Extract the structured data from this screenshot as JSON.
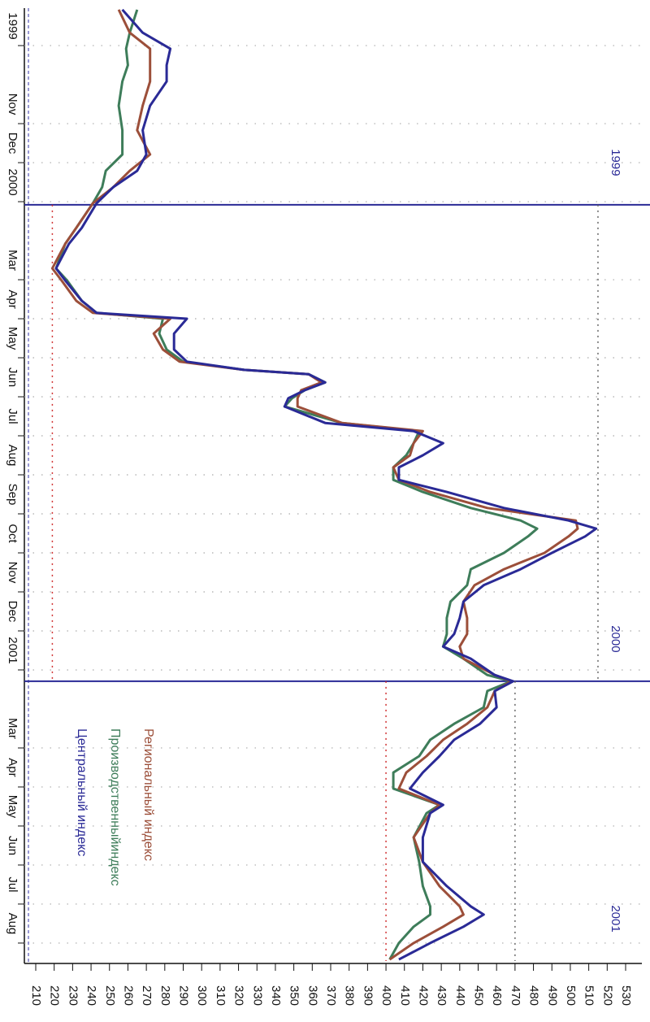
{
  "chart_data": {
    "type": "line",
    "x": [
      -0.42,
      0.17,
      0.58,
      1.0,
      1.42,
      2.04,
      2.67,
      3.29,
      3.71,
      4.13,
      4.54,
      5.17,
      5.58,
      6.21,
      6.52,
      7.04,
      7.35,
      7.5,
      7.88,
      8.29,
      8.6,
      8.81,
      8.92,
      9.13,
      9.33,
      9.54,
      9.75,
      10.17,
      10.38,
      10.69,
      11.0,
      11.31,
      11.63,
      11.94,
      12.35,
      12.67,
      12.88,
      13.08,
      13.5,
      13.92,
      14.33,
      14.75,
      15.17,
      15.58,
      15.9,
      16.21,
      16.63,
      16.79,
      17.04,
      17.46,
      17.88,
      18.29,
      18.71,
      19.13,
      19.54,
      19.96,
      20.17,
      20.79,
      21.42,
      22.04,
      22.56,
      22.77,
      23.08,
      23.5,
      23.92
    ],
    "series": [
      {
        "name": "Региональный индекс",
        "color": "#9c4f3a",
        "values": [
          255,
          261,
          272,
          272,
          272,
          268,
          265,
          272,
          261,
          252,
          241,
          232,
          226,
          219,
          224,
          232,
          241,
          283,
          274,
          279,
          288,
          323,
          358,
          365,
          354,
          352,
          352,
          376,
          420,
          415,
          413,
          404,
          407,
          424,
          455,
          503,
          504,
          499,
          486,
          464,
          448,
          442,
          444,
          444,
          440,
          442,
          459,
          468,
          459,
          455,
          444,
          431,
          422,
          411,
          407,
          429,
          424,
          415,
          420,
          429,
          440,
          442,
          431,
          415,
          402
        ]
      },
      {
        "name": "Производственныйиндекс",
        "color": "#3e7d5a",
        "values": [
          265,
          261,
          259,
          260,
          257,
          255,
          257,
          257,
          248,
          246,
          241,
          232,
          226,
          221,
          227,
          235,
          243,
          279,
          277,
          281,
          290,
          323,
          358,
          367,
          356,
          349,
          345,
          376,
          418,
          415,
          411,
          404,
          404,
          420,
          446,
          473,
          482,
          477,
          464,
          446,
          444,
          435,
          433,
          433,
          431,
          442,
          455,
          468,
          455,
          453,
          437,
          424,
          418,
          404,
          404,
          429,
          422,
          415,
          418,
          420,
          424,
          424,
          415,
          407,
          402
        ]
      },
      {
        "name": "Центральный индекс",
        "color": "#2a2a96",
        "values": [
          257,
          268,
          283,
          281,
          281,
          272,
          268,
          270,
          265,
          252,
          243,
          235,
          228,
          221,
          226,
          235,
          243,
          292,
          285,
          285,
          292,
          323,
          358,
          367,
          356,
          347,
          345,
          367,
          415,
          431,
          420,
          407,
          407,
          433,
          464,
          499,
          514,
          508,
          490,
          473,
          453,
          442,
          440,
          437,
          431,
          446,
          459,
          469,
          459,
          460,
          451,
          437,
          429,
          420,
          413,
          431,
          424,
          420,
          420,
          433,
          446,
          453,
          442,
          424,
          407
        ]
      }
    ],
    "xlim": [
      -0.46,
      23.96
    ],
    "xticks": [
      {
        "value": 0,
        "label": "1999"
      },
      {
        "value": 2,
        "label": "Nov"
      },
      {
        "value": 3,
        "label": "Dec"
      },
      {
        "value": 4,
        "label": "2000"
      },
      {
        "value": 6,
        "label": "Mar"
      },
      {
        "value": 7,
        "label": "Apr"
      },
      {
        "value": 8,
        "label": "May"
      },
      {
        "value": 9,
        "label": "Jun"
      },
      {
        "value": 10,
        "label": "Jul"
      },
      {
        "value": 11,
        "label": "Aug"
      },
      {
        "value": 12,
        "label": "Sep"
      },
      {
        "value": 13,
        "label": "Oct"
      },
      {
        "value": 14,
        "label": "Nov"
      },
      {
        "value": 15,
        "label": "Dec"
      },
      {
        "value": 16,
        "label": "2001"
      },
      {
        "value": 18,
        "label": "Mar"
      },
      {
        "value": 19,
        "label": "Apr"
      },
      {
        "value": 20,
        "label": "May"
      },
      {
        "value": 21,
        "label": "Jun"
      },
      {
        "value": 22,
        "label": "Jul"
      },
      {
        "value": 23,
        "label": "Aug"
      }
    ],
    "ylim": [
      210,
      530
    ],
    "yticks": [
      210,
      220,
      230,
      240,
      250,
      260,
      270,
      280,
      290,
      300,
      310,
      320,
      330,
      340,
      350,
      360,
      370,
      380,
      390,
      400,
      410,
      420,
      430,
      440,
      450,
      460,
      470,
      480,
      490,
      500,
      510,
      520,
      530
    ],
    "grid": true,
    "periods": [
      {
        "label": "1999",
        "end": 4.58
      },
      {
        "label": "2000",
        "start": 4.58,
        "end": 16.79,
        "min": 219,
        "max": 515
      },
      {
        "label": "2001",
        "start": 16.79,
        "min": 400,
        "max": 470
      }
    ]
  }
}
